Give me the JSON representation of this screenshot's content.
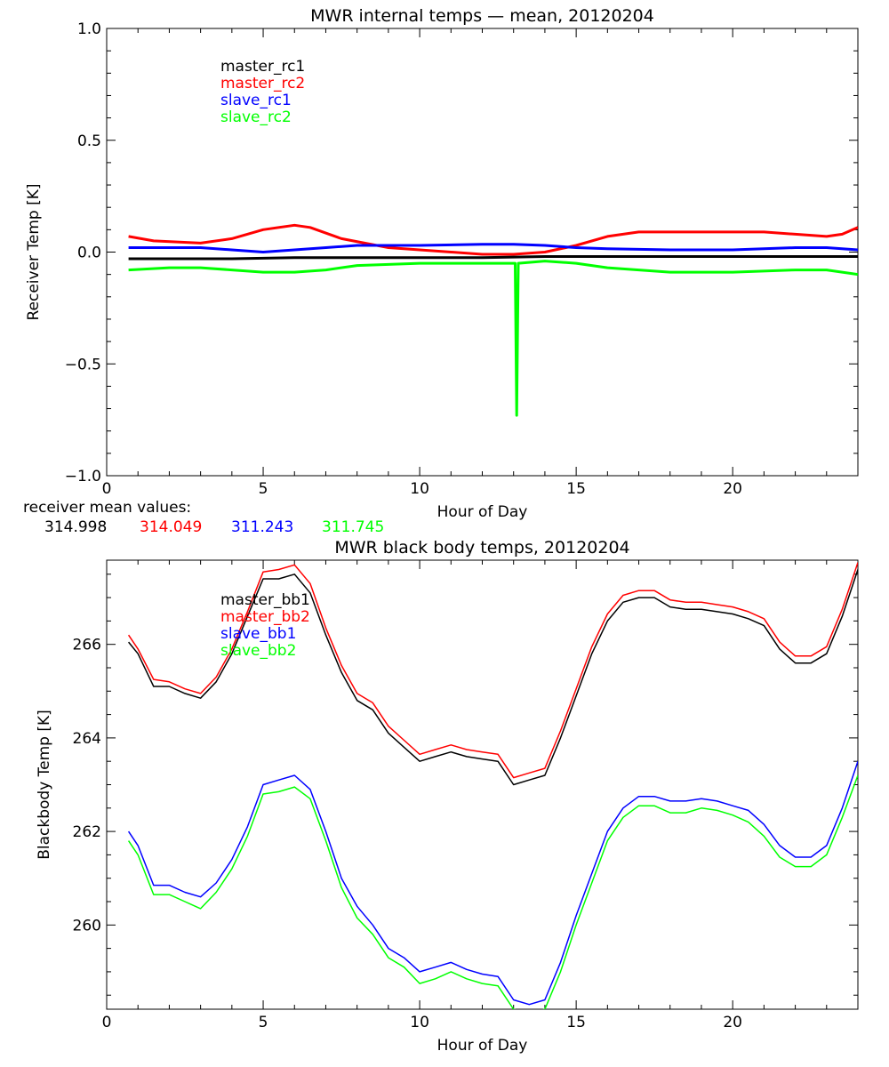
{
  "chart_data": [
    {
      "type": "line",
      "title": "MWR internal temps — mean, 20120204",
      "xlabel": "Hour of Day",
      "ylabel": "Receiver Temp [K]",
      "xlim": [
        0,
        24
      ],
      "ylim": [
        -1.0,
        1.0
      ],
      "x_ticks": [
        0,
        5,
        10,
        15,
        20
      ],
      "y_ticks": [
        -1.0,
        -0.5,
        0.0,
        0.5,
        1.0
      ],
      "y_tick_labels": [
        "−1.0",
        "−0.5",
        "0.0",
        "0.5",
        "1.0"
      ],
      "legend_position": "top-left",
      "series": [
        {
          "name": "master_rc1",
          "color": "#000000",
          "x": [
            0.7,
            2,
            4,
            6,
            8,
            10,
            12,
            14,
            16,
            18,
            20,
            22,
            24
          ],
          "y": [
            -0.03,
            -0.03,
            -0.03,
            -0.025,
            -0.025,
            -0.025,
            -0.025,
            -0.02,
            -0.02,
            -0.02,
            -0.02,
            -0.02,
            -0.02
          ]
        },
        {
          "name": "master_rc2",
          "color": "#ff0000",
          "x": [
            0.7,
            1.5,
            3,
            4,
            5,
            6,
            6.5,
            7.5,
            9,
            10,
            11,
            12,
            13,
            14,
            15,
            16,
            17,
            18,
            19,
            20,
            21,
            22,
            23,
            23.5,
            24
          ],
          "y": [
            0.07,
            0.05,
            0.04,
            0.06,
            0.1,
            0.12,
            0.11,
            0.06,
            0.02,
            0.01,
            0.0,
            -0.01,
            -0.01,
            0.0,
            0.03,
            0.07,
            0.09,
            0.09,
            0.09,
            0.09,
            0.09,
            0.08,
            0.07,
            0.08,
            0.11
          ]
        },
        {
          "name": "slave_rc1",
          "color": "#0000ff",
          "x": [
            0.7,
            2,
            3,
            4,
            5,
            6,
            7,
            8,
            10,
            12,
            13,
            14,
            15,
            16,
            18,
            20,
            22,
            23,
            24
          ],
          "y": [
            0.02,
            0.02,
            0.02,
            0.01,
            0.0,
            0.01,
            0.02,
            0.03,
            0.03,
            0.035,
            0.035,
            0.03,
            0.02,
            0.015,
            0.01,
            0.01,
            0.02,
            0.02,
            0.01
          ]
        },
        {
          "name": "slave_rc2",
          "color": "#00ff00",
          "x": [
            0.7,
            2,
            3,
            4,
            5,
            6,
            7,
            8,
            10,
            12,
            13.05,
            13.1,
            13.15,
            14,
            15,
            16,
            18,
            20,
            22,
            23,
            24
          ],
          "y": [
            -0.08,
            -0.07,
            -0.07,
            -0.08,
            -0.09,
            -0.09,
            -0.08,
            -0.06,
            -0.05,
            -0.05,
            -0.05,
            -0.73,
            -0.05,
            -0.04,
            -0.05,
            -0.07,
            -0.09,
            -0.09,
            -0.08,
            -0.08,
            -0.1
          ]
        }
      ],
      "mean_values_label": "receiver mean values:",
      "mean_values": [
        {
          "value": "314.998",
          "color": "#000000"
        },
        {
          "value": "314.049",
          "color": "#ff0000"
        },
        {
          "value": "311.243",
          "color": "#0000ff"
        },
        {
          "value": "311.745",
          "color": "#00ff00"
        }
      ]
    },
    {
      "type": "line",
      "title": "MWR black body temps, 20120204",
      "xlabel": "Hour of Day",
      "ylabel": "Blackbody Temp [K]",
      "xlim": [
        0,
        24
      ],
      "ylim": [
        258.2,
        267.8
      ],
      "x_ticks": [
        0,
        5,
        10,
        15,
        20
      ],
      "y_ticks": [
        260,
        262,
        264,
        266
      ],
      "legend_position": "top-left",
      "series": [
        {
          "name": "master_bb1",
          "color": "#000000",
          "x": [
            0.7,
            1,
            1.5,
            2,
            2.5,
            3,
            3.5,
            4,
            4.5,
            5,
            5.5,
            6,
            6.5,
            7,
            7.5,
            8,
            8.5,
            9,
            9.5,
            10,
            10.5,
            11,
            11.5,
            12,
            12.5,
            13,
            13.5,
            14,
            14.5,
            15,
            15.5,
            16,
            16.5,
            17,
            17.5,
            18,
            18.5,
            19,
            19.5,
            20,
            20.5,
            21,
            21.5,
            22,
            22.5,
            23,
            23.5,
            24
          ],
          "y": [
            266.05,
            265.8,
            265.1,
            265.1,
            264.95,
            264.85,
            265.2,
            265.8,
            266.6,
            267.4,
            267.4,
            267.5,
            267.1,
            266.2,
            265.4,
            264.8,
            264.6,
            264.1,
            263.8,
            263.5,
            263.6,
            263.7,
            263.6,
            263.55,
            263.5,
            263.0,
            263.1,
            263.2,
            264.0,
            264.9,
            265.8,
            266.5,
            266.9,
            267.0,
            267.0,
            266.8,
            266.75,
            266.75,
            266.7,
            266.65,
            266.55,
            266.4,
            265.9,
            265.6,
            265.6,
            265.8,
            266.6,
            267.6
          ]
        },
        {
          "name": "master_bb2",
          "color": "#ff0000",
          "x": [
            0.7,
            1,
            1.5,
            2,
            2.5,
            3,
            3.5,
            4,
            4.5,
            5,
            5.5,
            6,
            6.5,
            7,
            7.5,
            8,
            8.5,
            9,
            9.5,
            10,
            10.5,
            11,
            11.5,
            12,
            12.5,
            13,
            13.5,
            14,
            14.5,
            15,
            15.5,
            16,
            16.5,
            17,
            17.5,
            18,
            18.5,
            19,
            19.5,
            20,
            20.5,
            21,
            21.5,
            22,
            22.5,
            23,
            23.5,
            24
          ],
          "y": [
            266.2,
            265.9,
            265.25,
            265.2,
            265.05,
            264.95,
            265.3,
            265.9,
            266.7,
            267.55,
            267.6,
            267.7,
            267.3,
            266.35,
            265.55,
            264.95,
            264.75,
            264.25,
            263.95,
            263.65,
            263.75,
            263.85,
            263.75,
            263.7,
            263.65,
            263.15,
            263.25,
            263.35,
            264.15,
            265.05,
            265.95,
            266.65,
            267.05,
            267.15,
            267.15,
            266.95,
            266.9,
            266.9,
            266.85,
            266.8,
            266.7,
            266.55,
            266.05,
            265.75,
            265.75,
            265.95,
            266.75,
            267.75
          ]
        },
        {
          "name": "slave_bb1",
          "color": "#0000ff",
          "x": [
            0.7,
            1,
            1.5,
            2,
            2.5,
            3,
            3.5,
            4,
            4.5,
            5,
            5.5,
            6,
            6.5,
            7,
            7.5,
            8,
            8.5,
            9,
            9.5,
            10,
            10.5,
            11,
            11.5,
            12,
            12.5,
            13,
            13.5,
            14,
            14.5,
            15,
            15.5,
            16,
            16.5,
            17,
            17.5,
            18,
            18.5,
            19,
            19.5,
            20,
            20.5,
            21,
            21.5,
            22,
            22.5,
            23,
            23.5,
            24
          ],
          "y": [
            262.0,
            261.7,
            260.85,
            260.85,
            260.7,
            260.6,
            260.9,
            261.4,
            262.1,
            263.0,
            263.1,
            263.2,
            262.9,
            262.0,
            261.0,
            260.4,
            260.0,
            259.5,
            259.3,
            259.0,
            259.1,
            259.2,
            259.05,
            258.95,
            258.9,
            258.4,
            258.3,
            258.4,
            259.2,
            260.2,
            261.1,
            262.0,
            262.5,
            262.75,
            262.75,
            262.65,
            262.65,
            262.7,
            262.65,
            262.55,
            262.45,
            262.15,
            261.7,
            261.45,
            261.45,
            261.7,
            262.5,
            263.5
          ]
        },
        {
          "name": "slave_bb2",
          "color": "#00ff00",
          "x": [
            0.7,
            1,
            1.5,
            2,
            2.5,
            3,
            3.5,
            4,
            4.5,
            5,
            5.5,
            6,
            6.5,
            7,
            7.5,
            8,
            8.5,
            9,
            9.5,
            10,
            10.5,
            11,
            11.5,
            12,
            12.5,
            13,
            13.5,
            14,
            14.5,
            15,
            15.5,
            16,
            16.5,
            17,
            17.5,
            18,
            18.5,
            19,
            19.5,
            20,
            20.5,
            21,
            21.5,
            22,
            22.5,
            23,
            23.5,
            24
          ],
          "y": [
            261.8,
            261.5,
            260.65,
            260.65,
            260.5,
            260.35,
            260.7,
            261.2,
            261.9,
            262.8,
            262.85,
            262.95,
            262.7,
            261.8,
            260.8,
            260.15,
            259.8,
            259.3,
            259.1,
            258.75,
            258.85,
            259.0,
            258.85,
            258.75,
            258.7,
            258.2,
            258.1,
            258.2,
            259.0,
            260.0,
            260.9,
            261.8,
            262.3,
            262.55,
            262.55,
            262.4,
            262.4,
            262.5,
            262.45,
            262.35,
            262.2,
            261.9,
            261.45,
            261.25,
            261.25,
            261.5,
            262.3,
            263.2
          ]
        }
      ]
    }
  ]
}
